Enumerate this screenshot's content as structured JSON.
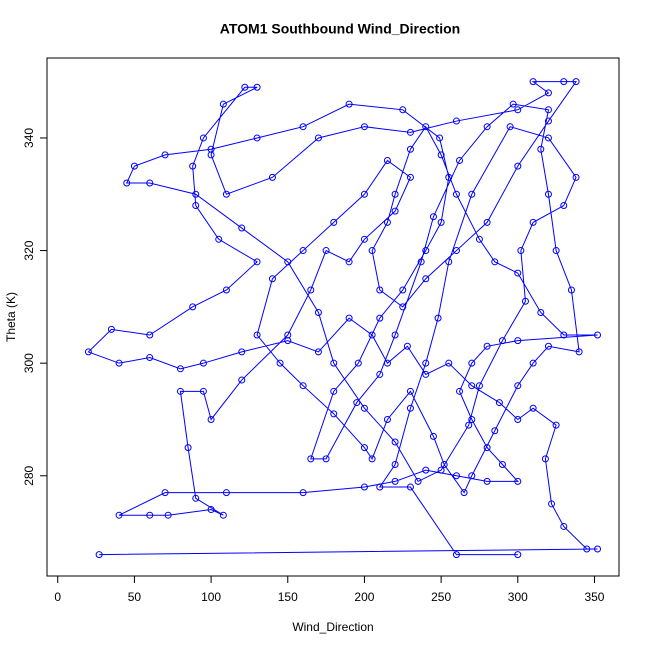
{
  "chart_data": {
    "type": "line",
    "title": "ATOM1 Southbound Wind_Direction",
    "x_label": "Wind_Direction",
    "y_label": "Theta (K)",
    "x": [
      27,
      352,
      345,
      330,
      322,
      318,
      325,
      310,
      300,
      288,
      270,
      255,
      240,
      228,
      215,
      205,
      190,
      170,
      150,
      120,
      95,
      80,
      60,
      40,
      20,
      35,
      60,
      88,
      110,
      130,
      105,
      90,
      88,
      95,
      122,
      130,
      108,
      100,
      110,
      140,
      170,
      200,
      230,
      260,
      300,
      320,
      310,
      330,
      338,
      320,
      300,
      280,
      260,
      240,
      225,
      210,
      205,
      215,
      220,
      230,
      240,
      250,
      260,
      275,
      285,
      300,
      315,
      330,
      352,
      300,
      280,
      270,
      262,
      270,
      280,
      290,
      300,
      280,
      260,
      240,
      220,
      200,
      160,
      110,
      70,
      40,
      60,
      72,
      100,
      108,
      90,
      85,
      80,
      95,
      100,
      120,
      150,
      165,
      175,
      190,
      200,
      220,
      230,
      215,
      200,
      180,
      160,
      140,
      130,
      145,
      160,
      180,
      200,
      205,
      215,
      230,
      245,
      252,
      265,
      270,
      285,
      300,
      310,
      320,
      340,
      335,
      325,
      320,
      315,
      320,
      297,
      280,
      262,
      245,
      237,
      220,
      210,
      195,
      175,
      165,
      180,
      196,
      210,
      225,
      240,
      250,
      255,
      249,
      225,
      190,
      160,
      130,
      100,
      70,
      50,
      45,
      60,
      90,
      120,
      150,
      170,
      180,
      200,
      220,
      235,
      250,
      268,
      275,
      290,
      305,
      302,
      310,
      330,
      338,
      320,
      295,
      270,
      255,
      248,
      240,
      230,
      220,
      210,
      230,
      260,
      300
    ],
    "series": [
      {
        "name": "Theta",
        "color": "#0000ff",
        "values": [
          266,
          267,
          267,
          271,
          275,
          283,
          289,
          292,
          290,
          293,
          296,
          300,
          298,
          303,
          300,
          305,
          308,
          302,
          304,
          302,
          300,
          299,
          301,
          300,
          302,
          306,
          305,
          310,
          313,
          318,
          322,
          328,
          335,
          340,
          349,
          349,
          346,
          337,
          330,
          333,
          340,
          342,
          341,
          343,
          345,
          348,
          350,
          350,
          350,
          343,
          335,
          325,
          320,
          315,
          310,
          313,
          320,
          325,
          330,
          338,
          342,
          337,
          330,
          322,
          318,
          316,
          309,
          305,
          305,
          304,
          303,
          300,
          295,
          290,
          285,
          282,
          279,
          279,
          280,
          281,
          279,
          278,
          277,
          277,
          277,
          273,
          273,
          273,
          274,
          273,
          276,
          285,
          295,
          295,
          290,
          297,
          305,
          313,
          320,
          318,
          322,
          327,
          333,
          336,
          330,
          325,
          320,
          315,
          305,
          300,
          296,
          291,
          285,
          283,
          290,
          295,
          287,
          282,
          277,
          280,
          288,
          296,
          300,
          303,
          302,
          313,
          320,
          330,
          338,
          345,
          346,
          342,
          336,
          326,
          318,
          305,
          298,
          293,
          283,
          283,
          295,
          300,
          308,
          313,
          320,
          325,
          333,
          340,
          345,
          346,
          342,
          340,
          338,
          337,
          335,
          332,
          332,
          330,
          324,
          318,
          309,
          300,
          292,
          286,
          279,
          281,
          289,
          296,
          304,
          311,
          320,
          325,
          328,
          333,
          340,
          342,
          330,
          318,
          308,
          300,
          292,
          282,
          278,
          278,
          266,
          266
        ]
      }
    ],
    "xlim": [
      -7,
      366
    ],
    "ylim": [
      262.2,
      354.2
    ],
    "xticks": [
      0,
      50,
      100,
      150,
      200,
      250,
      300,
      350
    ],
    "yticks": [
      280,
      300,
      320,
      340
    ],
    "grid": false
  }
}
